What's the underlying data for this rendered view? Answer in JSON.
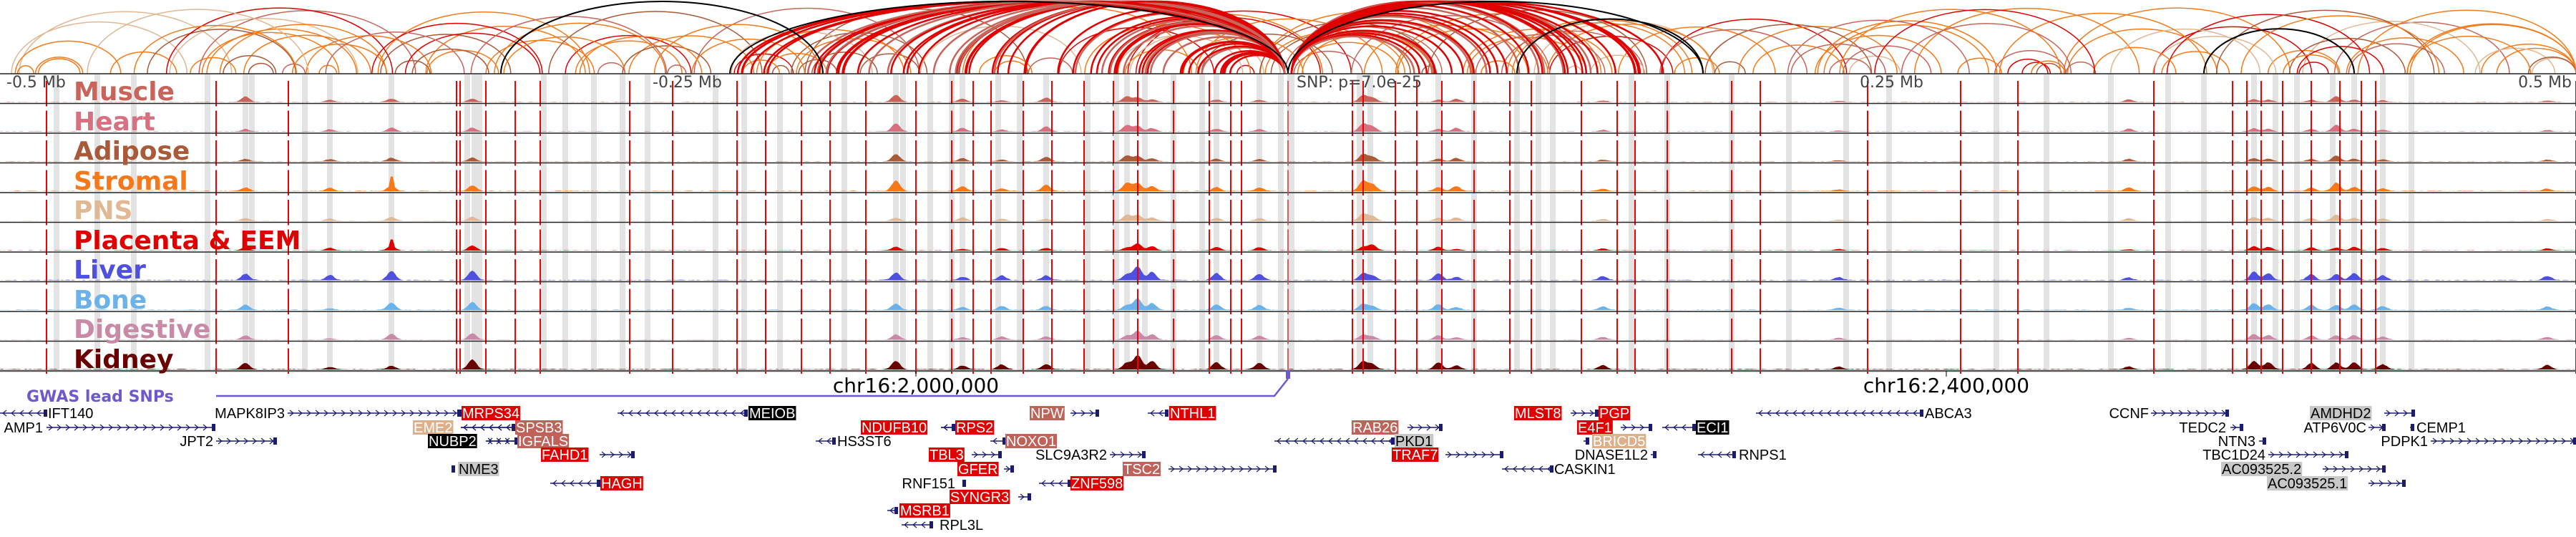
{
  "ruler": {
    "left_end": "-0.5 Mb",
    "left_mid": "-0.25 Mb",
    "snp": "SNP: p=7.0e-25",
    "right_mid": "0.25 Mb",
    "right_end": "0.5 Mb"
  },
  "tracks": [
    {
      "label": "Muscle",
      "color": "#c8645a"
    },
    {
      "label": "Heart",
      "color": "#d9707f"
    },
    {
      "label": "Adipose",
      "color": "#a95a38"
    },
    {
      "label": "Stromal",
      "color": "#f5781a"
    },
    {
      "label": "PNS",
      "color": "#e0b894"
    },
    {
      "label": "Placenta & EEM",
      "color": "#e00000"
    },
    {
      "label": "Liver",
      "color": "#5050e0"
    },
    {
      "label": "Bone",
      "color": "#6cb2ea"
    },
    {
      "label": "Digestive",
      "color": "#c98aa8"
    },
    {
      "label": "Kidney",
      "color": "#6a0000"
    }
  ],
  "axis": {
    "tick1": "chr16:2,000,000",
    "tick2": "chr16:2,400,000"
  },
  "gwas": {
    "label": "GWAS lead SNPs",
    "color": "#6a5acd"
  },
  "gene_styles": {
    "red": {
      "bg": "#e00000",
      "fg": "#ffffff"
    },
    "rose": {
      "bg": "#c0625a",
      "fg": "#ffffff"
    },
    "tan": {
      "bg": "#dcb08a",
      "fg": "#ffffff"
    },
    "black": {
      "bg": "#000000",
      "fg": "#ffffff"
    },
    "grey": {
      "bg": "#c8c8c8",
      "fg": "#000000"
    },
    "none": {
      "bg": "",
      "fg": "#000000"
    }
  },
  "genes": [
    {
      "name": "IFT140",
      "style": "none",
      "strand": "-"
    },
    {
      "name": "MAPK8IP3",
      "style": "none",
      "strand": "+"
    },
    {
      "name": "MRPS34",
      "style": "red",
      "strand": "+"
    },
    {
      "name": "MEIOB",
      "style": "black",
      "strand": "-"
    },
    {
      "name": "NPW",
      "style": "rose",
      "strand": "+"
    },
    {
      "name": "NTHL1",
      "style": "red",
      "strand": "-"
    },
    {
      "name": "MLST8",
      "style": "red",
      "strand": "+"
    },
    {
      "name": "PGP",
      "style": "red",
      "strand": "+"
    },
    {
      "name": "ABCA3",
      "style": "none",
      "strand": "-"
    },
    {
      "name": "CCNF",
      "style": "none",
      "strand": "+"
    },
    {
      "name": "AMDHD2",
      "style": "grey",
      "strand": "+"
    },
    {
      "name": "AMP1",
      "style": "none",
      "strand": "+"
    },
    {
      "name": "EME2",
      "style": "tan",
      "strand": "-"
    },
    {
      "name": "SPSB3",
      "style": "rose",
      "strand": "-"
    },
    {
      "name": "NDUFB10",
      "style": "red",
      "strand": "-"
    },
    {
      "name": "RPS2",
      "style": "red",
      "strand": "-"
    },
    {
      "name": "RAB26",
      "style": "rose",
      "strand": "+"
    },
    {
      "name": "E4F1",
      "style": "red",
      "strand": "+"
    },
    {
      "name": "ECI1",
      "style": "black",
      "strand": "-"
    },
    {
      "name": "TEDC2",
      "style": "none",
      "strand": "+"
    },
    {
      "name": "ATP6V0C",
      "style": "none",
      "strand": "+"
    },
    {
      "name": "CEMP1",
      "style": "none",
      "strand": "+"
    },
    {
      "name": "JPT2",
      "style": "none",
      "strand": "+"
    },
    {
      "name": "NUBP2",
      "style": "black",
      "strand": "+"
    },
    {
      "name": "IGFALS",
      "style": "rose",
      "strand": "-"
    },
    {
      "name": "HS3ST6",
      "style": "none",
      "strand": "-"
    },
    {
      "name": "NOXO1",
      "style": "rose",
      "strand": "-"
    },
    {
      "name": "PKD1",
      "style": "grey",
      "strand": "-"
    },
    {
      "name": "BRICD5",
      "style": "tan",
      "strand": "-"
    },
    {
      "name": "NTN3",
      "style": "none",
      "strand": "+"
    },
    {
      "name": "PDPK1",
      "style": "none",
      "strand": "+"
    },
    {
      "name": "FAHD1",
      "style": "red",
      "strand": "+"
    },
    {
      "name": "TBL3",
      "style": "red",
      "strand": "+"
    },
    {
      "name": "SLC9A3R2",
      "style": "none",
      "strand": "+"
    },
    {
      "name": "TRAF7",
      "style": "red",
      "strand": "+"
    },
    {
      "name": "DNASE1L2",
      "style": "none",
      "strand": "+"
    },
    {
      "name": "RNPS1",
      "style": "none",
      "strand": "-"
    },
    {
      "name": "TBC1D24",
      "style": "none",
      "strand": "+"
    },
    {
      "name": "NME3",
      "style": "grey",
      "strand": "+"
    },
    {
      "name": "GFER",
      "style": "red",
      "strand": "+"
    },
    {
      "name": "TSC2",
      "style": "rose",
      "strand": "+"
    },
    {
      "name": "CASKIN1",
      "style": "none",
      "strand": "-"
    },
    {
      "name": "AC093525.2",
      "style": "grey",
      "strand": "+"
    },
    {
      "name": "HAGH",
      "style": "red",
      "strand": "-"
    },
    {
      "name": "RNF151",
      "style": "none",
      "strand": "+"
    },
    {
      "name": "ZNF598",
      "style": "red",
      "strand": "-"
    },
    {
      "name": "AC093525.1",
      "style": "grey",
      "strand": "+"
    },
    {
      "name": "SYNGR3",
      "style": "red",
      "strand": "+"
    },
    {
      "name": "MSRB1",
      "style": "red",
      "strand": "-"
    },
    {
      "name": "RPL3L",
      "style": "none",
      "strand": "-"
    }
  ]
}
